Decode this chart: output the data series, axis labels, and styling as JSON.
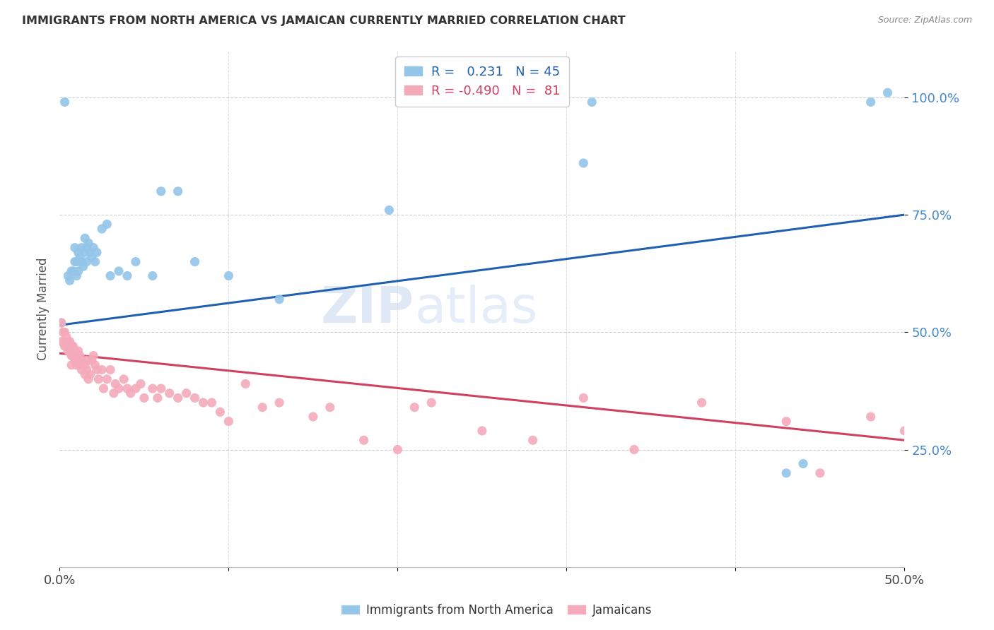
{
  "title": "IMMIGRANTS FROM NORTH AMERICA VS JAMAICAN CURRENTLY MARRIED CORRELATION CHART",
  "source": "Source: ZipAtlas.com",
  "ylabel": "Currently Married",
  "ytick_labels": [
    "25.0%",
    "50.0%",
    "75.0%",
    "100.0%"
  ],
  "ytick_values": [
    0.25,
    0.5,
    0.75,
    1.0
  ],
  "xmin": 0.0,
  "xmax": 0.5,
  "ymin": 0.0,
  "ymax": 1.1,
  "legend_r_blue": "0.231",
  "legend_n_blue": "45",
  "legend_r_pink": "-0.490",
  "legend_n_pink": "81",
  "blue_color": "#92C5E8",
  "pink_color": "#F4AABB",
  "trend_blue_color": "#2060B0",
  "trend_pink_color": "#D04060",
  "watermark_zip": "ZIP",
  "watermark_atlas": "atlas",
  "blue_points_x": [
    0.001,
    0.003,
    0.005,
    0.006,
    0.007,
    0.008,
    0.009,
    0.009,
    0.01,
    0.01,
    0.011,
    0.011,
    0.012,
    0.013,
    0.013,
    0.014,
    0.015,
    0.015,
    0.016,
    0.016,
    0.017,
    0.018,
    0.019,
    0.02,
    0.021,
    0.022,
    0.025,
    0.028,
    0.03,
    0.035,
    0.04,
    0.045,
    0.055,
    0.06,
    0.07,
    0.08,
    0.1,
    0.13,
    0.195,
    0.31,
    0.315,
    0.43,
    0.44,
    0.48,
    0.49
  ],
  "blue_points_y": [
    0.52,
    0.99,
    0.62,
    0.61,
    0.63,
    0.63,
    0.65,
    0.68,
    0.62,
    0.65,
    0.63,
    0.67,
    0.66,
    0.65,
    0.68,
    0.64,
    0.67,
    0.7,
    0.65,
    0.68,
    0.69,
    0.67,
    0.66,
    0.68,
    0.65,
    0.67,
    0.72,
    0.73,
    0.62,
    0.63,
    0.62,
    0.65,
    0.62,
    0.8,
    0.8,
    0.65,
    0.62,
    0.57,
    0.76,
    0.86,
    0.99,
    0.2,
    0.22,
    0.99,
    1.01
  ],
  "pink_points_x": [
    0.001,
    0.001,
    0.002,
    0.002,
    0.003,
    0.003,
    0.004,
    0.004,
    0.005,
    0.005,
    0.006,
    0.006,
    0.007,
    0.007,
    0.007,
    0.008,
    0.008,
    0.009,
    0.009,
    0.01,
    0.01,
    0.011,
    0.011,
    0.012,
    0.012,
    0.013,
    0.013,
    0.014,
    0.015,
    0.015,
    0.016,
    0.016,
    0.017,
    0.018,
    0.019,
    0.02,
    0.021,
    0.022,
    0.023,
    0.025,
    0.026,
    0.028,
    0.03,
    0.032,
    0.033,
    0.035,
    0.038,
    0.04,
    0.042,
    0.045,
    0.048,
    0.05,
    0.055,
    0.058,
    0.06,
    0.065,
    0.07,
    0.075,
    0.08,
    0.085,
    0.09,
    0.095,
    0.1,
    0.11,
    0.12,
    0.13,
    0.15,
    0.16,
    0.18,
    0.2,
    0.21,
    0.22,
    0.25,
    0.28,
    0.31,
    0.34,
    0.38,
    0.43,
    0.45,
    0.48,
    0.5
  ],
  "pink_points_y": [
    0.48,
    0.52,
    0.48,
    0.5,
    0.47,
    0.5,
    0.47,
    0.49,
    0.46,
    0.48,
    0.46,
    0.48,
    0.45,
    0.47,
    0.43,
    0.45,
    0.47,
    0.44,
    0.46,
    0.43,
    0.45,
    0.44,
    0.46,
    0.43,
    0.45,
    0.42,
    0.44,
    0.43,
    0.41,
    0.43,
    0.42,
    0.44,
    0.4,
    0.41,
    0.44,
    0.45,
    0.43,
    0.42,
    0.4,
    0.42,
    0.38,
    0.4,
    0.42,
    0.37,
    0.39,
    0.38,
    0.4,
    0.38,
    0.37,
    0.38,
    0.39,
    0.36,
    0.38,
    0.36,
    0.38,
    0.37,
    0.36,
    0.37,
    0.36,
    0.35,
    0.35,
    0.33,
    0.31,
    0.39,
    0.34,
    0.35,
    0.32,
    0.34,
    0.27,
    0.25,
    0.34,
    0.35,
    0.29,
    0.27,
    0.36,
    0.25,
    0.35,
    0.31,
    0.2,
    0.32,
    0.29
  ],
  "blue_trend_x0": 0.0,
  "blue_trend_x1": 0.5,
  "blue_trend_y0": 0.515,
  "blue_trend_y1": 0.75,
  "pink_trend_x0": 0.0,
  "pink_trend_x1": 0.5,
  "pink_trend_y0": 0.455,
  "pink_trend_y1": 0.27
}
